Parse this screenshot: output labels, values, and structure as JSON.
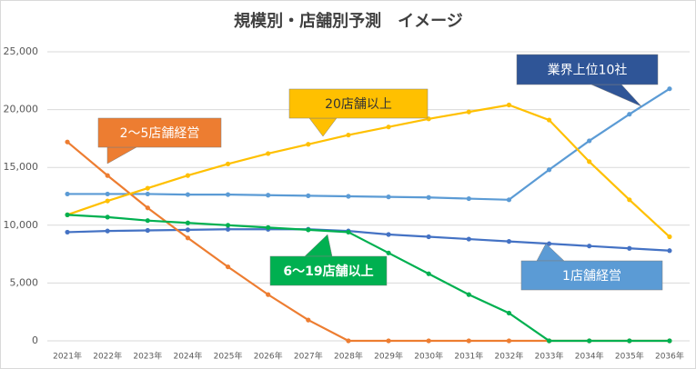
{
  "chart_data": {
    "type": "line",
    "title": "規模別・店舗別予測　イメージ",
    "categories": [
      "2021年",
      "2022年",
      "2023年",
      "2024年",
      "2025年",
      "2026年",
      "2027年",
      "2028年",
      "2029年",
      "2030年",
      "2031年",
      "2032年",
      "2033年",
      "2034年",
      "2035年",
      "2036年"
    ],
    "ylim": [
      0,
      25000
    ],
    "yticks": [
      {
        "value": 0,
        "label": "0"
      },
      {
        "value": 5000,
        "label": "5,000"
      },
      {
        "value": 10000,
        "label": "10,000"
      },
      {
        "value": 15000,
        "label": "15,000"
      },
      {
        "value": 20000,
        "label": "20,000"
      },
      {
        "value": 25000,
        "label": "25,000"
      }
    ],
    "grid": true,
    "series": [
      {
        "name": "業界上位10社",
        "color": "#5b9bd5",
        "callout_color": "#2f5597",
        "values": [
          12700,
          12700,
          12700,
          12650,
          12650,
          12600,
          12550,
          12500,
          12450,
          12400,
          12300,
          12200,
          14800,
          17300,
          19600,
          21800
        ]
      },
      {
        "name": "1店舗経営",
        "color": "#4472c4",
        "callout_color": "#5b9bd5",
        "values": [
          9400,
          9500,
          9550,
          9600,
          9650,
          9650,
          9650,
          9500,
          9200,
          9000,
          8800,
          8600,
          8400,
          8200,
          8000,
          7800
        ]
      },
      {
        "name": "2〜5店舗経営",
        "color": "#ed7d31",
        "callout_color": "#ed7d31",
        "values": [
          17200,
          14300,
          11500,
          8900,
          6400,
          4000,
          1800,
          0,
          0,
          0,
          0,
          0,
          0,
          0,
          0,
          0
        ]
      },
      {
        "name": "20店舗以上",
        "color": "#ffc000",
        "callout_color": "#ffc000",
        "values": [
          10900,
          12100,
          13200,
          14300,
          15300,
          16200,
          17000,
          17800,
          18500,
          19200,
          19800,
          20400,
          19100,
          15500,
          12200,
          9000
        ]
      },
      {
        "name": "6〜19店舗以上",
        "color": "#00b050",
        "callout_color": "#00b050",
        "values": [
          10900,
          10700,
          10400,
          10200,
          10000,
          9800,
          9600,
          9400,
          7600,
          5800,
          4000,
          2400,
          0,
          0,
          0,
          0
        ]
      }
    ]
  }
}
